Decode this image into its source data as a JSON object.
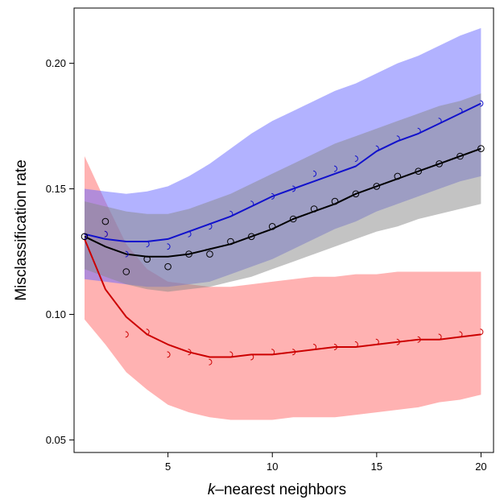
{
  "chart_data": {
    "type": "line",
    "xlabel_prefix": "k",
    "xlabel_rest": "–nearest neighbors",
    "ylabel": "Misclassification rate",
    "xlim": [
      0.5,
      20.6
    ],
    "ylim": [
      0.045,
      0.222
    ],
    "xticks": [
      5,
      10,
      15,
      20
    ],
    "xtick_labels": [
      "5",
      "10",
      "15",
      "20"
    ],
    "yticks": [
      0.05,
      0.1,
      0.15,
      0.2
    ],
    "ytick_labels": [
      "0.05",
      "0.10",
      "0.15",
      "0.20"
    ],
    "grid": false,
    "x": [
      1,
      2,
      3,
      4,
      5,
      6,
      7,
      8,
      9,
      10,
      11,
      12,
      13,
      14,
      15,
      16,
      17,
      18,
      19,
      20
    ],
    "series": [
      {
        "color": "#cc0000",
        "band_color": "#ff6666",
        "marker": "right-arc",
        "points": [
          0.131,
          0.132,
          0.092,
          0.093,
          0.084,
          0.085,
          0.081,
          0.084,
          0.083,
          0.085,
          0.085,
          0.087,
          0.087,
          0.088,
          0.089,
          0.089,
          0.09,
          0.091,
          0.092,
          0.093
        ],
        "fit": [
          0.13,
          0.11,
          0.099,
          0.092,
          0.088,
          0.085,
          0.083,
          0.083,
          0.084,
          0.084,
          0.085,
          0.086,
          0.087,
          0.087,
          0.088,
          0.089,
          0.09,
          0.09,
          0.091,
          0.092
        ],
        "band_upper": [
          0.163,
          0.145,
          0.128,
          0.118,
          0.113,
          0.112,
          0.111,
          0.111,
          0.112,
          0.113,
          0.114,
          0.115,
          0.115,
          0.116,
          0.116,
          0.117,
          0.117,
          0.117,
          0.117,
          0.117
        ],
        "band_lower": [
          0.098,
          0.088,
          0.077,
          0.07,
          0.064,
          0.061,
          0.059,
          0.058,
          0.058,
          0.058,
          0.059,
          0.059,
          0.059,
          0.06,
          0.061,
          0.062,
          0.063,
          0.065,
          0.066,
          0.068
        ]
      },
      {
        "color": "#1111cc",
        "band_color": "#6666ff",
        "marker": "right-arc",
        "points": [
          0.131,
          0.132,
          0.124,
          0.128,
          0.127,
          0.132,
          0.135,
          0.14,
          0.144,
          0.147,
          0.15,
          0.156,
          0.158,
          0.162,
          0.166,
          0.17,
          0.173,
          0.177,
          0.181,
          0.184
        ],
        "fit": [
          0.132,
          0.13,
          0.129,
          0.129,
          0.13,
          0.133,
          0.136,
          0.139,
          0.143,
          0.147,
          0.15,
          0.153,
          0.156,
          0.159,
          0.165,
          0.169,
          0.172,
          0.176,
          0.18,
          0.184
        ],
        "band_upper": [
          0.15,
          0.149,
          0.148,
          0.149,
          0.151,
          0.155,
          0.16,
          0.166,
          0.172,
          0.177,
          0.181,
          0.185,
          0.189,
          0.192,
          0.196,
          0.2,
          0.203,
          0.207,
          0.211,
          0.214
        ],
        "band_lower": [
          0.114,
          0.113,
          0.112,
          0.111,
          0.111,
          0.112,
          0.113,
          0.116,
          0.119,
          0.122,
          0.126,
          0.13,
          0.134,
          0.137,
          0.141,
          0.144,
          0.147,
          0.15,
          0.153,
          0.155
        ]
      },
      {
        "color": "#000000",
        "band_color": "#888888",
        "marker": "circle",
        "points": [
          0.131,
          0.137,
          0.117,
          0.122,
          0.119,
          0.124,
          0.124,
          0.129,
          0.131,
          0.135,
          0.138,
          0.142,
          0.145,
          0.148,
          0.151,
          0.155,
          0.157,
          0.16,
          0.163,
          0.166
        ],
        "fit": [
          0.131,
          0.127,
          0.124,
          0.123,
          0.123,
          0.124,
          0.126,
          0.128,
          0.131,
          0.134,
          0.138,
          0.141,
          0.144,
          0.148,
          0.151,
          0.154,
          0.157,
          0.16,
          0.163,
          0.166
        ],
        "band_upper": [
          0.145,
          0.143,
          0.141,
          0.14,
          0.14,
          0.142,
          0.145,
          0.148,
          0.152,
          0.156,
          0.16,
          0.164,
          0.168,
          0.171,
          0.174,
          0.177,
          0.18,
          0.183,
          0.185,
          0.188
        ],
        "band_lower": [
          0.118,
          0.115,
          0.112,
          0.11,
          0.109,
          0.11,
          0.111,
          0.113,
          0.115,
          0.118,
          0.121,
          0.124,
          0.127,
          0.13,
          0.133,
          0.135,
          0.138,
          0.14,
          0.142,
          0.144
        ]
      }
    ]
  }
}
